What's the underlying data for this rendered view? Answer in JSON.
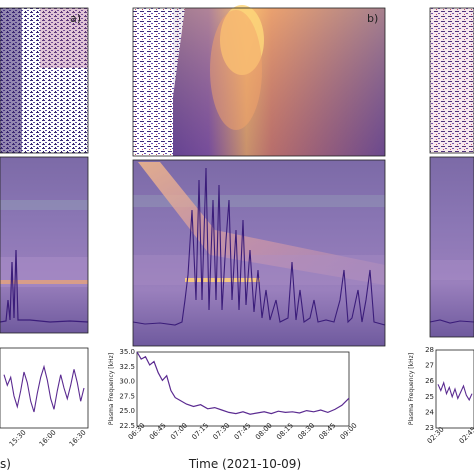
{
  "figure": {
    "xlabel_center": "Time (2021-10-09)",
    "xlabel_left_fragment": "s)"
  },
  "colors": {
    "dark": "#2a1a5e",
    "mid": "#7b5fb0",
    "band": "#a786c6",
    "warm": "#f2a35a",
    "hot": "#fdd67a",
    "line": "#3b1d7a",
    "lineLight": "#6a4fb3"
  },
  "chart_data": [
    {
      "type": "line",
      "panel_label": "a)",
      "x_ticks": [
        "15:30",
        "16:00",
        "16:30"
      ],
      "ylabel": "",
      "y_ticks": [],
      "series": [
        {
          "values": [
            26.0,
            25.6,
            25.9,
            25.2,
            24.8,
            25.4,
            26.1,
            25.7,
            25.0,
            24.6,
            25.3,
            25.9,
            26.3,
            25.8,
            25.1,
            24.7,
            25.4,
            26.0,
            25.5,
            25.1,
            25.6,
            26.2,
            25.7,
            25.0,
            25.5
          ]
        }
      ]
    },
    {
      "type": "line",
      "panel_label": "b)",
      "ylabel": "Plasma Frequency [kHz]",
      "ylim": [
        22.5,
        35.0
      ],
      "y_ticks": [
        "35.0",
        "32.5",
        "30.0",
        "27.5",
        "25.0",
        "22.5"
      ],
      "x_ticks": [
        "06:30",
        "06:45",
        "07:00",
        "07:15",
        "07:30",
        "07:45",
        "08:00",
        "08:15",
        "08:30",
        "08:45",
        "09:00"
      ],
      "x": [
        0,
        3,
        6,
        9,
        12,
        15,
        18,
        21,
        24,
        27,
        30,
        35,
        40,
        45,
        50,
        55,
        60,
        65,
        70,
        75,
        80,
        85,
        90,
        95,
        100,
        105,
        110,
        115,
        120,
        125,
        130,
        135,
        140,
        145,
        150
      ],
      "series": [
        {
          "values": [
            35.0,
            33.8,
            34.2,
            32.8,
            33.4,
            31.5,
            30.2,
            31.0,
            28.5,
            27.3,
            26.9,
            26.2,
            25.8,
            26.1,
            25.4,
            25.6,
            25.2,
            24.8,
            24.6,
            24.9,
            24.5,
            24.7,
            24.9,
            24.6,
            25.0,
            24.8,
            24.9,
            24.7,
            25.1,
            24.9,
            25.2,
            24.8,
            25.3,
            26.0,
            27.2
          ]
        }
      ]
    },
    {
      "type": "line",
      "panel_label": "",
      "ylabel": "Plasma Frequency [kHz]",
      "ylim": [
        23,
        28
      ],
      "y_ticks": [
        "28",
        "27",
        "26",
        "25",
        "24",
        "23"
      ],
      "x_ticks": [
        "02:30",
        "02:45"
      ],
      "series": [
        {
          "values": [
            25.8,
            25.4,
            25.9,
            25.2,
            25.6,
            25.0,
            25.5,
            24.9,
            25.3,
            25.7,
            25.1,
            24.8,
            25.2
          ]
        }
      ]
    }
  ]
}
